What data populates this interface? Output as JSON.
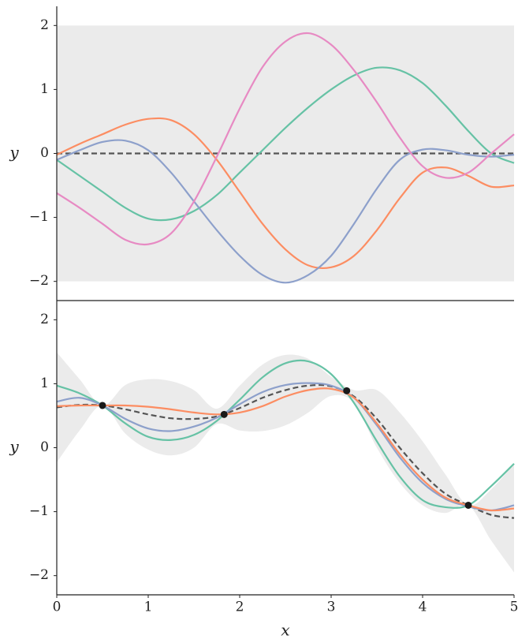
{
  "chart_data": [
    {
      "type": "line",
      "ylabel": "y",
      "x": [
        0,
        0.25,
        0.5,
        0.75,
        1,
        1.25,
        1.5,
        1.75,
        2,
        2.25,
        2.5,
        2.75,
        3,
        3.25,
        3.5,
        3.75,
        4,
        4.25,
        4.5,
        4.75,
        5
      ],
      "xlim": [
        0,
        5
      ],
      "ylim": [
        -2.3,
        2.3
      ],
      "yticks": [
        {
          "value": -2,
          "label": "−2"
        },
        {
          "value": -1,
          "label": "−1"
        },
        0,
        1,
        2
      ],
      "band": {
        "color": "#ebebeb",
        "lower": [
          -2,
          -2,
          -2,
          -2,
          -2,
          -2,
          -2,
          -2,
          -2,
          -2,
          -2,
          -2,
          -2,
          -2,
          -2,
          -2,
          -2,
          -2,
          -2,
          -2,
          -2
        ],
        "upper": [
          2,
          2,
          2,
          2,
          2,
          2,
          2,
          2,
          2,
          2,
          2,
          2,
          2,
          2,
          2,
          2,
          2,
          2,
          2,
          2,
          2
        ]
      },
      "series": [
        {
          "color": "#555555",
          "linestyle": "dashed",
          "values": [
            0,
            0,
            0,
            0,
            0,
            0,
            0,
            0,
            0,
            0,
            0,
            0,
            0,
            0,
            0,
            0,
            0,
            0,
            0,
            0,
            0
          ]
        },
        {
          "color": "#66c2a5",
          "values": [
            -0.1,
            -0.35,
            -0.6,
            -0.85,
            -1.02,
            -1.03,
            -0.9,
            -0.65,
            -0.3,
            0.05,
            0.4,
            0.72,
            1.0,
            1.22,
            1.34,
            1.3,
            1.1,
            0.75,
            0.35,
            0.0,
            -0.15
          ]
        },
        {
          "color": "#fc8d62",
          "values": [
            -0.02,
            0.15,
            0.3,
            0.45,
            0.54,
            0.52,
            0.3,
            -0.1,
            -0.6,
            -1.1,
            -1.5,
            -1.75,
            -1.78,
            -1.6,
            -1.2,
            -0.7,
            -0.3,
            -0.22,
            -0.35,
            -0.52,
            -0.5
          ]
        },
        {
          "color": "#8da0cb",
          "values": [
            -0.1,
            0.05,
            0.18,
            0.2,
            0.05,
            -0.3,
            -0.75,
            -1.2,
            -1.6,
            -1.9,
            -2.02,
            -1.9,
            -1.6,
            -1.1,
            -0.55,
            -0.1,
            0.06,
            0.05,
            -0.02,
            -0.05,
            -0.02
          ]
        },
        {
          "color": "#e78ac3",
          "values": [
            -0.62,
            -0.85,
            -1.1,
            -1.35,
            -1.42,
            -1.25,
            -0.75,
            -0.05,
            0.7,
            1.35,
            1.75,
            1.88,
            1.7,
            1.3,
            0.8,
            0.25,
            -0.2,
            -0.38,
            -0.3,
            0.0,
            0.3
          ]
        }
      ]
    },
    {
      "type": "line",
      "ylabel": "y",
      "xlabel": "x",
      "x": [
        0,
        0.25,
        0.5,
        0.75,
        1,
        1.25,
        1.5,
        1.75,
        2,
        2.25,
        2.5,
        2.75,
        3,
        3.25,
        3.5,
        3.75,
        4,
        4.25,
        4.5,
        4.75,
        5
      ],
      "xlim": [
        0,
        5
      ],
      "ylim": [
        -2.3,
        2.3
      ],
      "xticks": [
        0,
        1,
        2,
        3,
        4,
        5
      ],
      "yticks": [
        {
          "value": -2,
          "label": "−2"
        },
        {
          "value": -1,
          "label": "−1"
        },
        0,
        1,
        2
      ],
      "band": {
        "color": "#ebebeb",
        "lower": [
          -0.23,
          0.27,
          0.66,
          0.22,
          -0.03,
          -0.12,
          0.0,
          0.37,
          0.27,
          0.26,
          0.35,
          0.55,
          0.81,
          0.7,
          0.0,
          -0.55,
          -0.9,
          -1.02,
          -0.9,
          -1.45,
          -1.95
        ],
        "upper": [
          1.49,
          1.07,
          0.66,
          0.98,
          1.07,
          1.04,
          0.9,
          0.61,
          0.97,
          1.3,
          1.45,
          1.39,
          1.11,
          0.9,
          0.9,
          0.55,
          0.1,
          -0.42,
          -0.9,
          -0.65,
          -0.25
        ]
      },
      "series": [
        {
          "color": "#555555",
          "linestyle": "dashed",
          "values": [
            0.63,
            0.67,
            0.66,
            0.6,
            0.52,
            0.46,
            0.45,
            0.49,
            0.62,
            0.78,
            0.9,
            0.97,
            0.96,
            0.8,
            0.45,
            0.0,
            -0.4,
            -0.72,
            -0.9,
            -1.05,
            -1.1
          ]
        },
        {
          "color": "#66c2a5",
          "values": [
            0.97,
            0.85,
            0.66,
            0.38,
            0.17,
            0.12,
            0.2,
            0.42,
            0.75,
            1.1,
            1.32,
            1.35,
            1.15,
            0.7,
            0.1,
            -0.45,
            -0.82,
            -0.93,
            -0.9,
            -0.6,
            -0.25
          ]
        },
        {
          "color": "#8da0cb",
          "values": [
            0.72,
            0.78,
            0.66,
            0.45,
            0.3,
            0.26,
            0.33,
            0.47,
            0.68,
            0.87,
            0.98,
            1.01,
            0.97,
            0.78,
            0.35,
            -0.15,
            -0.55,
            -0.8,
            -0.92,
            -0.98,
            -0.9
          ]
        },
        {
          "color": "#fc8d62",
          "values": [
            0.65,
            0.66,
            0.66,
            0.66,
            0.64,
            0.6,
            0.55,
            0.52,
            0.55,
            0.65,
            0.8,
            0.9,
            0.92,
            0.78,
            0.38,
            -0.1,
            -0.5,
            -0.78,
            -0.9,
            -0.98,
            -0.95
          ]
        }
      ],
      "observations": {
        "color": "#1a1a1a",
        "x": [
          0.5,
          1.83,
          3.17,
          4.5
        ],
        "values": [
          0.66,
          0.52,
          0.89,
          -0.9
        ]
      }
    }
  ]
}
